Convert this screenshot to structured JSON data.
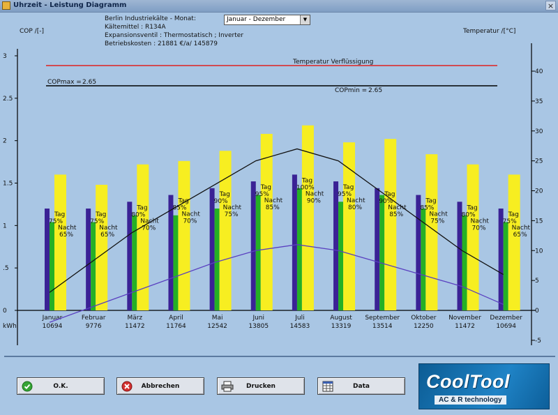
{
  "window": {
    "title": "Uhrzeit - Leistung Diagramm",
    "close": "×"
  },
  "info": {
    "line1": "Berlin Industriekälte - Monat:",
    "line2": "Kältemittel : R134A",
    "line3": "Expansionsventil : Thermostatisch ; Inverter",
    "line4": "Betriebskosten : 21881    €/a/ 145879"
  },
  "month_select": {
    "value": "Januar - Dezember"
  },
  "axis_titles": {
    "left": "COP /[-]",
    "right": "Temperatur /[°C]",
    "kwh": "kWh"
  },
  "buttons": {
    "ok": "O.K.",
    "abbrechen": "Abbrechen",
    "drucken": "Drucken",
    "data": "Data"
  },
  "logo": {
    "main": "CoolTool",
    "sub": "AC & R technology"
  },
  "colors": {
    "cop_bar": "#3a2295",
    "tag_bar": "#25b025",
    "nacht_bar": "#f7ee21",
    "temp_line": "#111111",
    "cop_line": "#5a40c0",
    "red_line": "#e02020"
  },
  "chart_data": {
    "type": "bar",
    "categories": [
      "Januar",
      "Februar",
      "März",
      "April",
      "Mai",
      "Juni",
      "Juli",
      "August",
      "September",
      "Oktober",
      "November",
      "Dezember"
    ],
    "kwh": [
      "10694",
      "9776",
      "11472",
      "11764",
      "12542",
      "13805",
      "14583",
      "13319",
      "13514",
      "12250",
      "11472",
      "10694"
    ],
    "series": [
      {
        "values": [
          1.2,
          1.2,
          1.28,
          1.36,
          1.44,
          1.52,
          1.6,
          1.52,
          1.44,
          1.36,
          1.28,
          1.2
        ]
      },
      {
        "values": [
          1.04,
          1.04,
          1.12,
          1.12,
          1.2,
          1.36,
          1.44,
          1.28,
          1.36,
          1.2,
          1.12,
          1.04
        ]
      },
      {
        "values": [
          1.6,
          1.48,
          1.72,
          1.76,
          1.88,
          2.08,
          2.18,
          1.98,
          2.02,
          1.84,
          1.72,
          1.6
        ]
      }
    ],
    "tag_label": "Tag",
    "nacht_label": "Nacht",
    "tag_pct": [
      "75%",
      "75%",
      "80%",
      "85%",
      "90%",
      "95%",
      "100%",
      "95%",
      "90%",
      "85%",
      "80%",
      "75%"
    ],
    "nacht_pct": [
      "65%",
      "65%",
      "70%",
      "70%",
      "75%",
      "85%",
      "90%",
      "80%",
      "85%",
      "75%",
      "70%",
      "65%"
    ],
    "temperature_line": [
      3,
      8,
      13,
      17,
      21,
      25,
      27,
      25,
      20,
      15,
      10,
      6
    ],
    "cop_line": [
      -2,
      0.5,
      3,
      5.5,
      8,
      10,
      11,
      10,
      8,
      6,
      4,
      1
    ],
    "left_ticks": [
      "0",
      ".5",
      "1",
      "1.5",
      "2",
      "2.5",
      "3"
    ],
    "right_ticks": [
      "-5",
      "0",
      "5",
      "10",
      "15",
      "20",
      "25",
      "30",
      "35",
      "40"
    ],
    "ylim_left": [
      0,
      3
    ],
    "ylim_right": [
      -5,
      40
    ],
    "ref_lines": {
      "red_label": "Temperatur Verflüssigung",
      "copmax_label": "COPmax =",
      "copmax_value": "2.65",
      "copmin_label": "COPmin =",
      "copmin_value": "2.65"
    }
  }
}
